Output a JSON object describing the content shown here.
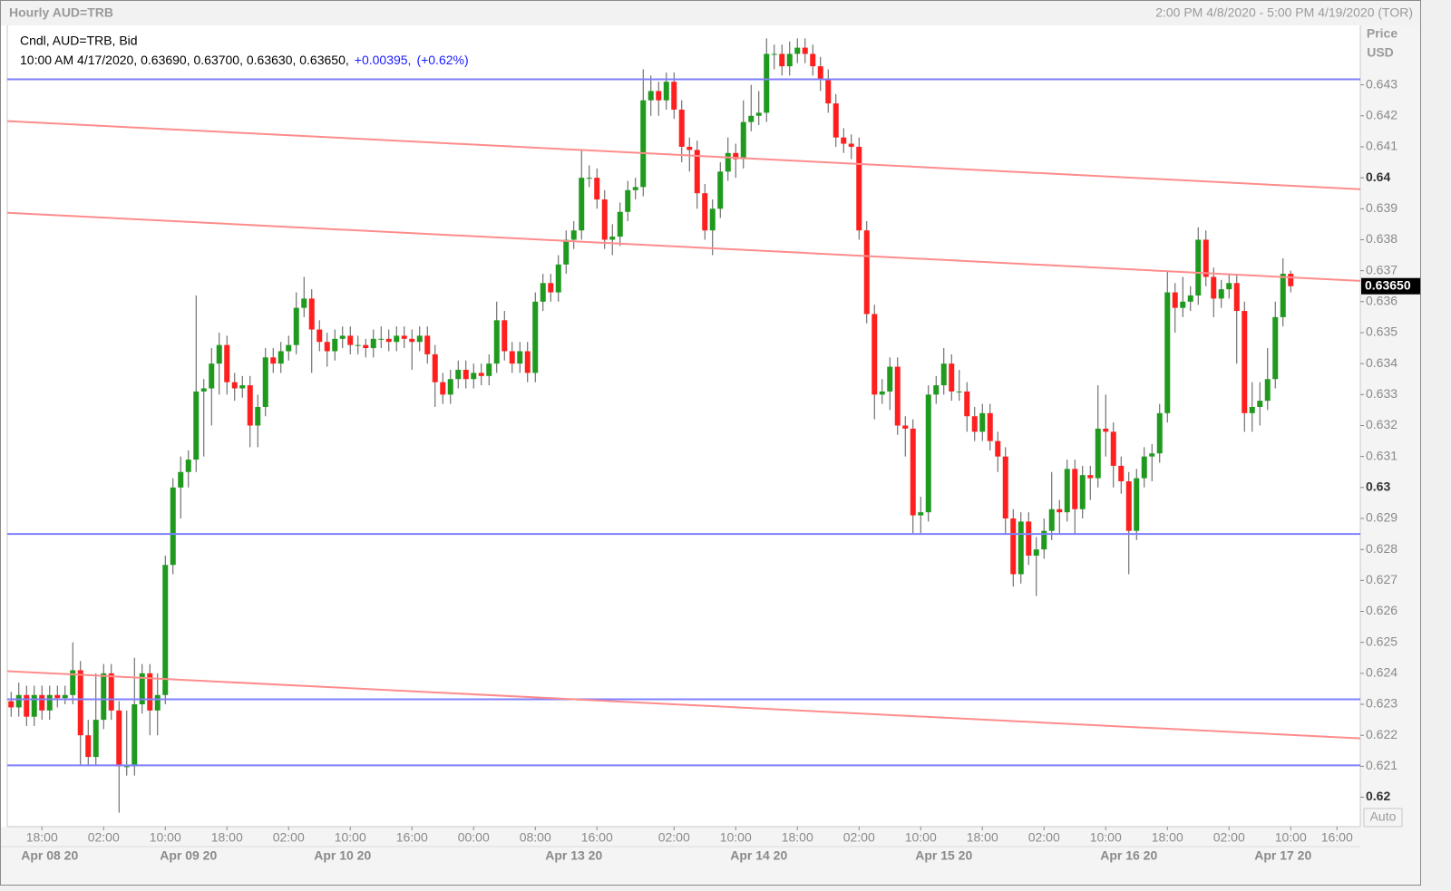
{
  "chart_data": {
    "type": "candlestick",
    "title": "Hourly AUD=TRB",
    "range_label": "2:00 PM 4/8/2020 - 5:00 PM 4/19/2020 (TOR)",
    "legend": {
      "line1": "Cndl, AUD=TRB, Bid",
      "line2": "10:00 AM 4/17/2020, 0.63690, 0.63700, 0.63630, 0.63650,",
      "change": "+0.00395,",
      "change_pct": "(+0.62%)"
    },
    "y_axis_title": "Price",
    "y_axis_unit": "USD",
    "scale_button": "Auto",
    "last_value_label": "0.63650",
    "up_color": "#1f9a1f",
    "down_color": "#ff1f1f",
    "grid": false,
    "ylim": [
      0.61905,
      0.64492
    ],
    "yticks": [
      0.62,
      0.621,
      0.622,
      0.623,
      0.624,
      0.625,
      0.626,
      0.627,
      0.628,
      0.629,
      0.63,
      0.631,
      0.632,
      0.633,
      0.634,
      0.635,
      0.636,
      0.637,
      0.638,
      0.639,
      0.64,
      0.641,
      0.642,
      0.643
    ],
    "hlines": {
      "color": "#7f7fff",
      "values": [
        0.64318,
        0.6285,
        0.62316,
        0.62103
      ]
    },
    "trendlines": {
      "color": "#ff8c8c",
      "lines": [
        [
          0.64183,
          0.63963
        ],
        [
          0.63887,
          0.63667
        ],
        [
          0.62407,
          0.6219
        ]
      ]
    },
    "categories": [
      null,
      null,
      null,
      null,
      "18:00",
      null,
      null,
      null,
      null,
      null,
      null,
      null,
      "02:00",
      null,
      null,
      null,
      null,
      null,
      null,
      null,
      "10:00",
      null,
      null,
      null,
      null,
      null,
      null,
      null,
      "18:00",
      null,
      null,
      null,
      null,
      null,
      null,
      null,
      "02:00",
      null,
      null,
      null,
      null,
      null,
      null,
      null,
      "10:00",
      null,
      null,
      null,
      null,
      null,
      null,
      null,
      "16:00",
      null,
      null,
      null,
      null,
      null,
      null,
      null,
      "00:00",
      null,
      null,
      null,
      null,
      null,
      null,
      null,
      "08:00",
      null,
      null,
      null,
      null,
      null,
      null,
      null,
      "16:00",
      null,
      null,
      null,
      null,
      null,
      null,
      null,
      null,
      null,
      "02:00",
      null,
      null,
      null,
      null,
      null,
      null,
      null,
      "10:00",
      null,
      null,
      null,
      null,
      null,
      null,
      null,
      "18:00",
      null,
      null,
      null,
      null,
      null,
      null,
      null,
      "02:00",
      null,
      null,
      null,
      null,
      null,
      null,
      null,
      "10:00",
      null,
      null,
      null,
      null,
      null,
      null,
      null,
      "18:00",
      null,
      null,
      null,
      null,
      null,
      null,
      null,
      "02:00",
      null,
      null,
      null,
      null,
      null,
      null,
      null,
      "10:00",
      null,
      null,
      null,
      null,
      null,
      null,
      null,
      "18:00",
      null,
      null,
      null,
      null,
      null,
      null,
      null,
      "02:00",
      null,
      null,
      null,
      null,
      null,
      null,
      null,
      "10:00",
      null,
      null,
      null,
      null,
      null,
      "16:00"
    ],
    "date_categories": [
      null,
      null,
      null,
      null,
      null,
      "Apr 08 20",
      null,
      null,
      null,
      null,
      null,
      null,
      null,
      null,
      null,
      null,
      null,
      null,
      null,
      null,
      null,
      null,
      null,
      "Apr 09 20",
      null,
      null,
      null,
      null,
      null,
      null,
      null,
      null,
      null,
      null,
      null,
      null,
      null,
      null,
      null,
      null,
      null,
      null,
      null,
      "Apr 10 20",
      null,
      null,
      null,
      null,
      null,
      null,
      null,
      null,
      null,
      null,
      null,
      null,
      null,
      null,
      null,
      null,
      null,
      null,
      null,
      null,
      null,
      null,
      null,
      null,
      null,
      null,
      null,
      null,
      null,
      "Apr 13 20",
      null,
      null,
      null,
      null,
      null,
      null,
      null,
      null,
      null,
      null,
      null,
      null,
      null,
      null,
      null,
      null,
      null,
      null,
      null,
      null,
      null,
      null,
      null,
      "Apr 14 20",
      null,
      null,
      null,
      null,
      null,
      null,
      null,
      null,
      null,
      null,
      null,
      null,
      null,
      null,
      null,
      null,
      null,
      null,
      null,
      null,
      null,
      null,
      null,
      "Apr 15 20",
      null,
      null,
      null,
      null,
      null,
      null,
      null,
      null,
      null,
      null,
      null,
      null,
      null,
      null,
      null,
      null,
      null,
      null,
      null,
      null,
      null,
      null,
      null,
      "Apr 16 20",
      null,
      null,
      null,
      null,
      null,
      null,
      null,
      null,
      null,
      null,
      null,
      null,
      null,
      null,
      null,
      null,
      null,
      null,
      null,
      "Apr 17 20",
      null,
      null,
      null,
      null,
      null,
      null,
      null
    ],
    "ohlc": [
      [
        0.6231,
        0.6234,
        0.6226,
        0.6229
      ],
      [
        0.6229,
        0.6237,
        0.6226,
        0.6233
      ],
      [
        0.6233,
        0.6236,
        0.6223,
        0.6226
      ],
      [
        0.6226,
        0.6236,
        0.6223,
        0.6233
      ],
      [
        0.6233,
        0.6236,
        0.6225,
        0.6228
      ],
      [
        0.6228,
        0.6236,
        0.6225,
        0.6233
      ],
      [
        0.6233,
        0.6236,
        0.6229,
        0.6232
      ],
      [
        0.6232,
        0.6236,
        0.623,
        0.6233
      ],
      [
        0.6233,
        0.625,
        0.623,
        0.6241
      ],
      [
        0.6241,
        0.6244,
        0.621,
        0.622
      ],
      [
        0.622,
        0.6225,
        0.621,
        0.6213
      ],
      [
        0.6213,
        0.624,
        0.621,
        0.6225
      ],
      [
        0.6225,
        0.6243,
        0.6222,
        0.624
      ],
      [
        0.624,
        0.6243,
        0.6225,
        0.6228
      ],
      [
        0.6228,
        0.6231,
        0.6195,
        0.621
      ],
      [
        0.621,
        0.6228,
        0.6207,
        0.621
      ],
      [
        0.621,
        0.6245,
        0.6207,
        0.623
      ],
      [
        0.623,
        0.6243,
        0.6227,
        0.624
      ],
      [
        0.624,
        0.6243,
        0.622,
        0.6228
      ],
      [
        0.6228,
        0.624,
        0.622,
        0.6233
      ],
      [
        0.6233,
        0.6278,
        0.623,
        0.6275
      ],
      [
        0.6275,
        0.6303,
        0.6272,
        0.63
      ],
      [
        0.63,
        0.631,
        0.629,
        0.6305
      ],
      [
        0.6305,
        0.6312,
        0.63,
        0.6309
      ],
      [
        0.6309,
        0.6362,
        0.6305,
        0.6331
      ],
      [
        0.6331,
        0.6335,
        0.631,
        0.6332
      ],
      [
        0.6332,
        0.6345,
        0.632,
        0.634
      ],
      [
        0.634,
        0.635,
        0.633,
        0.6346
      ],
      [
        0.6346,
        0.6349,
        0.633,
        0.6334
      ],
      [
        0.6334,
        0.6337,
        0.6328,
        0.6332
      ],
      [
        0.6332,
        0.6336,
        0.6329,
        0.6333
      ],
      [
        0.6333,
        0.6336,
        0.6313,
        0.632
      ],
      [
        0.632,
        0.633,
        0.6313,
        0.6326
      ],
      [
        0.6326,
        0.6345,
        0.6323,
        0.6342
      ],
      [
        0.6342,
        0.6345,
        0.6337,
        0.634
      ],
      [
        0.634,
        0.6347,
        0.6337,
        0.6344
      ],
      [
        0.6344,
        0.6349,
        0.6341,
        0.6346
      ],
      [
        0.6346,
        0.6363,
        0.6343,
        0.6358
      ],
      [
        0.6358,
        0.6368,
        0.6355,
        0.6361
      ],
      [
        0.6361,
        0.6364,
        0.6337,
        0.6351
      ],
      [
        0.6351,
        0.6354,
        0.6344,
        0.6347
      ],
      [
        0.6347,
        0.635,
        0.6339,
        0.6344
      ],
      [
        0.6344,
        0.6351,
        0.6341,
        0.6348
      ],
      [
        0.6348,
        0.6352,
        0.6345,
        0.6349
      ],
      [
        0.6349,
        0.6352,
        0.6343,
        0.6346
      ],
      [
        0.6346,
        0.6349,
        0.6343,
        0.6346
      ],
      [
        0.6346,
        0.6348,
        0.6342,
        0.6345
      ],
      [
        0.6345,
        0.6351,
        0.6342,
        0.6348
      ],
      [
        0.6348,
        0.6352,
        0.6345,
        0.6348
      ],
      [
        0.6348,
        0.6351,
        0.6344,
        0.6347
      ],
      [
        0.6347,
        0.6352,
        0.6344,
        0.6349
      ],
      [
        0.6349,
        0.6352,
        0.6345,
        0.6348
      ],
      [
        0.6348,
        0.6351,
        0.6338,
        0.6347
      ],
      [
        0.6347,
        0.6352,
        0.6344,
        0.6349
      ],
      [
        0.6349,
        0.6352,
        0.634,
        0.6343
      ],
      [
        0.6343,
        0.6346,
        0.6326,
        0.6334
      ],
      [
        0.6334,
        0.6337,
        0.6327,
        0.633
      ],
      [
        0.633,
        0.6338,
        0.6327,
        0.6335
      ],
      [
        0.6335,
        0.6341,
        0.6332,
        0.6338
      ],
      [
        0.6338,
        0.6341,
        0.6332,
        0.6335
      ],
      [
        0.6335,
        0.634,
        0.6332,
        0.6337
      ],
      [
        0.6337,
        0.634,
        0.6333,
        0.6336
      ],
      [
        0.6336,
        0.6343,
        0.6333,
        0.634
      ],
      [
        0.634,
        0.636,
        0.6337,
        0.6354
      ],
      [
        0.6354,
        0.6357,
        0.6341,
        0.6344
      ],
      [
        0.6344,
        0.6347,
        0.6337,
        0.634
      ],
      [
        0.634,
        0.6347,
        0.6337,
        0.6344
      ],
      [
        0.6344,
        0.6347,
        0.6334,
        0.6337
      ],
      [
        0.6337,
        0.6363,
        0.6334,
        0.636
      ],
      [
        0.636,
        0.6369,
        0.6357,
        0.6366
      ],
      [
        0.6366,
        0.6369,
        0.636,
        0.6363
      ],
      [
        0.6363,
        0.6375,
        0.636,
        0.6372
      ],
      [
        0.6372,
        0.6383,
        0.6369,
        0.638
      ],
      [
        0.638,
        0.6386,
        0.6377,
        0.6383
      ],
      [
        0.6383,
        0.6409,
        0.638,
        0.64
      ],
      [
        0.64,
        0.6404,
        0.6397,
        0.64
      ],
      [
        0.64,
        0.6403,
        0.639,
        0.6393
      ],
      [
        0.6393,
        0.6396,
        0.6377,
        0.638
      ],
      [
        0.638,
        0.6385,
        0.6375,
        0.6381
      ],
      [
        0.6381,
        0.6392,
        0.6378,
        0.6389
      ],
      [
        0.6389,
        0.6399,
        0.6386,
        0.6396
      ],
      [
        0.6396,
        0.64,
        0.6393,
        0.6397
      ],
      [
        0.6397,
        0.6435,
        0.6394,
        0.6425
      ],
      [
        0.6425,
        0.6433,
        0.642,
        0.6428
      ],
      [
        0.6428,
        0.6431,
        0.642,
        0.6425
      ],
      [
        0.6425,
        0.6434,
        0.6422,
        0.6431
      ],
      [
        0.6431,
        0.6434,
        0.6419,
        0.6422
      ],
      [
        0.6422,
        0.6425,
        0.6405,
        0.641
      ],
      [
        0.641,
        0.6413,
        0.6402,
        0.6409
      ],
      [
        0.6409,
        0.6412,
        0.639,
        0.6395
      ],
      [
        0.6395,
        0.6398,
        0.638,
        0.6383
      ],
      [
        0.6383,
        0.6393,
        0.6375,
        0.639
      ],
      [
        0.639,
        0.6405,
        0.6387,
        0.6402
      ],
      [
        0.6402,
        0.6413,
        0.6399,
        0.6408
      ],
      [
        0.6408,
        0.6411,
        0.64,
        0.6406
      ],
      [
        0.6406,
        0.6425,
        0.6403,
        0.6418
      ],
      [
        0.6418,
        0.643,
        0.6415,
        0.642
      ],
      [
        0.642,
        0.6428,
        0.6417,
        0.6421
      ],
      [
        0.6421,
        0.6445,
        0.6418,
        0.644
      ],
      [
        0.644,
        0.6443,
        0.6435,
        0.644
      ],
      [
        0.644,
        0.6443,
        0.6433,
        0.6436
      ],
      [
        0.6436,
        0.6444,
        0.6433,
        0.644
      ],
      [
        0.644,
        0.6445,
        0.6437,
        0.6442
      ],
      [
        0.6442,
        0.6445,
        0.6437,
        0.644
      ],
      [
        0.644,
        0.6443,
        0.6433,
        0.6436
      ],
      [
        0.6436,
        0.6439,
        0.6428,
        0.6432
      ],
      [
        0.6432,
        0.6435,
        0.6421,
        0.6424
      ],
      [
        0.6424,
        0.6427,
        0.641,
        0.6413
      ],
      [
        0.6413,
        0.6416,
        0.6408,
        0.6411
      ],
      [
        0.6411,
        0.6414,
        0.6406,
        0.641
      ],
      [
        0.641,
        0.6413,
        0.638,
        0.6383
      ],
      [
        0.6383,
        0.6386,
        0.6353,
        0.6356
      ],
      [
        0.6356,
        0.6359,
        0.6322,
        0.633
      ],
      [
        0.633,
        0.6335,
        0.6327,
        0.6331
      ],
      [
        0.6331,
        0.6342,
        0.6325,
        0.6339
      ],
      [
        0.6339,
        0.6342,
        0.6317,
        0.632
      ],
      [
        0.632,
        0.6323,
        0.631,
        0.6319
      ],
      [
        0.6319,
        0.6322,
        0.6285,
        0.6291
      ],
      [
        0.6291,
        0.6297,
        0.6285,
        0.6292
      ],
      [
        0.6292,
        0.6333,
        0.6289,
        0.633
      ],
      [
        0.633,
        0.6336,
        0.6327,
        0.6333
      ],
      [
        0.6333,
        0.6345,
        0.633,
        0.634
      ],
      [
        0.634,
        0.6343,
        0.6328,
        0.6331
      ],
      [
        0.6331,
        0.6338,
        0.6328,
        0.6331
      ],
      [
        0.6331,
        0.6334,
        0.6318,
        0.6323
      ],
      [
        0.6323,
        0.6326,
        0.6315,
        0.6318
      ],
      [
        0.6318,
        0.6327,
        0.6315,
        0.6324
      ],
      [
        0.6324,
        0.6327,
        0.6312,
        0.6315
      ],
      [
        0.6315,
        0.6318,
        0.6305,
        0.631
      ],
      [
        0.631,
        0.6313,
        0.6285,
        0.629
      ],
      [
        0.629,
        0.6293,
        0.6268,
        0.6272
      ],
      [
        0.6272,
        0.6292,
        0.6269,
        0.6289
      ],
      [
        0.6289,
        0.6292,
        0.6275,
        0.6278
      ],
      [
        0.6278,
        0.6284,
        0.6265,
        0.628
      ],
      [
        0.628,
        0.629,
        0.6277,
        0.6286
      ],
      [
        0.6286,
        0.6305,
        0.6283,
        0.6293
      ],
      [
        0.6293,
        0.6296,
        0.6285,
        0.6292
      ],
      [
        0.6292,
        0.6309,
        0.6289,
        0.6306
      ],
      [
        0.6306,
        0.6309,
        0.6285,
        0.6293
      ],
      [
        0.6293,
        0.6307,
        0.629,
        0.6304
      ],
      [
        0.6304,
        0.6307,
        0.6296,
        0.6303
      ],
      [
        0.6303,
        0.6333,
        0.63,
        0.6319
      ],
      [
        0.6319,
        0.633,
        0.631,
        0.6318
      ],
      [
        0.6318,
        0.6321,
        0.63,
        0.6307
      ],
      [
        0.6307,
        0.631,
        0.6298,
        0.6302
      ],
      [
        0.6302,
        0.6305,
        0.6272,
        0.6286
      ],
      [
        0.6286,
        0.6306,
        0.6283,
        0.6303
      ],
      [
        0.6303,
        0.6313,
        0.63,
        0.631
      ],
      [
        0.631,
        0.6314,
        0.6302,
        0.6311
      ],
      [
        0.6311,
        0.6327,
        0.6308,
        0.6324
      ],
      [
        0.6324,
        0.637,
        0.6321,
        0.6363
      ],
      [
        0.6363,
        0.6366,
        0.635,
        0.6358
      ],
      [
        0.6358,
        0.6368,
        0.6355,
        0.636
      ],
      [
        0.636,
        0.6365,
        0.6357,
        0.6362
      ],
      [
        0.6362,
        0.6384,
        0.6359,
        0.638
      ],
      [
        0.638,
        0.6383,
        0.6365,
        0.6368
      ],
      [
        0.6368,
        0.6371,
        0.6355,
        0.6361
      ],
      [
        0.6361,
        0.6367,
        0.6358,
        0.6364
      ],
      [
        0.6364,
        0.6369,
        0.6361,
        0.6366
      ],
      [
        0.6366,
        0.6369,
        0.634,
        0.6357
      ],
      [
        0.6357,
        0.636,
        0.6318,
        0.6324
      ],
      [
        0.6324,
        0.6334,
        0.6318,
        0.6326
      ],
      [
        0.6326,
        0.6334,
        0.632,
        0.6328
      ],
      [
        0.6328,
        0.6345,
        0.6325,
        0.6335
      ],
      [
        0.6335,
        0.636,
        0.6332,
        0.6355
      ],
      [
        0.6355,
        0.6374,
        0.6352,
        0.6369
      ],
      [
        0.6369,
        0.637,
        0.6363,
        0.6365
      ],
      null,
      null,
      null,
      null,
      null,
      null
    ]
  }
}
